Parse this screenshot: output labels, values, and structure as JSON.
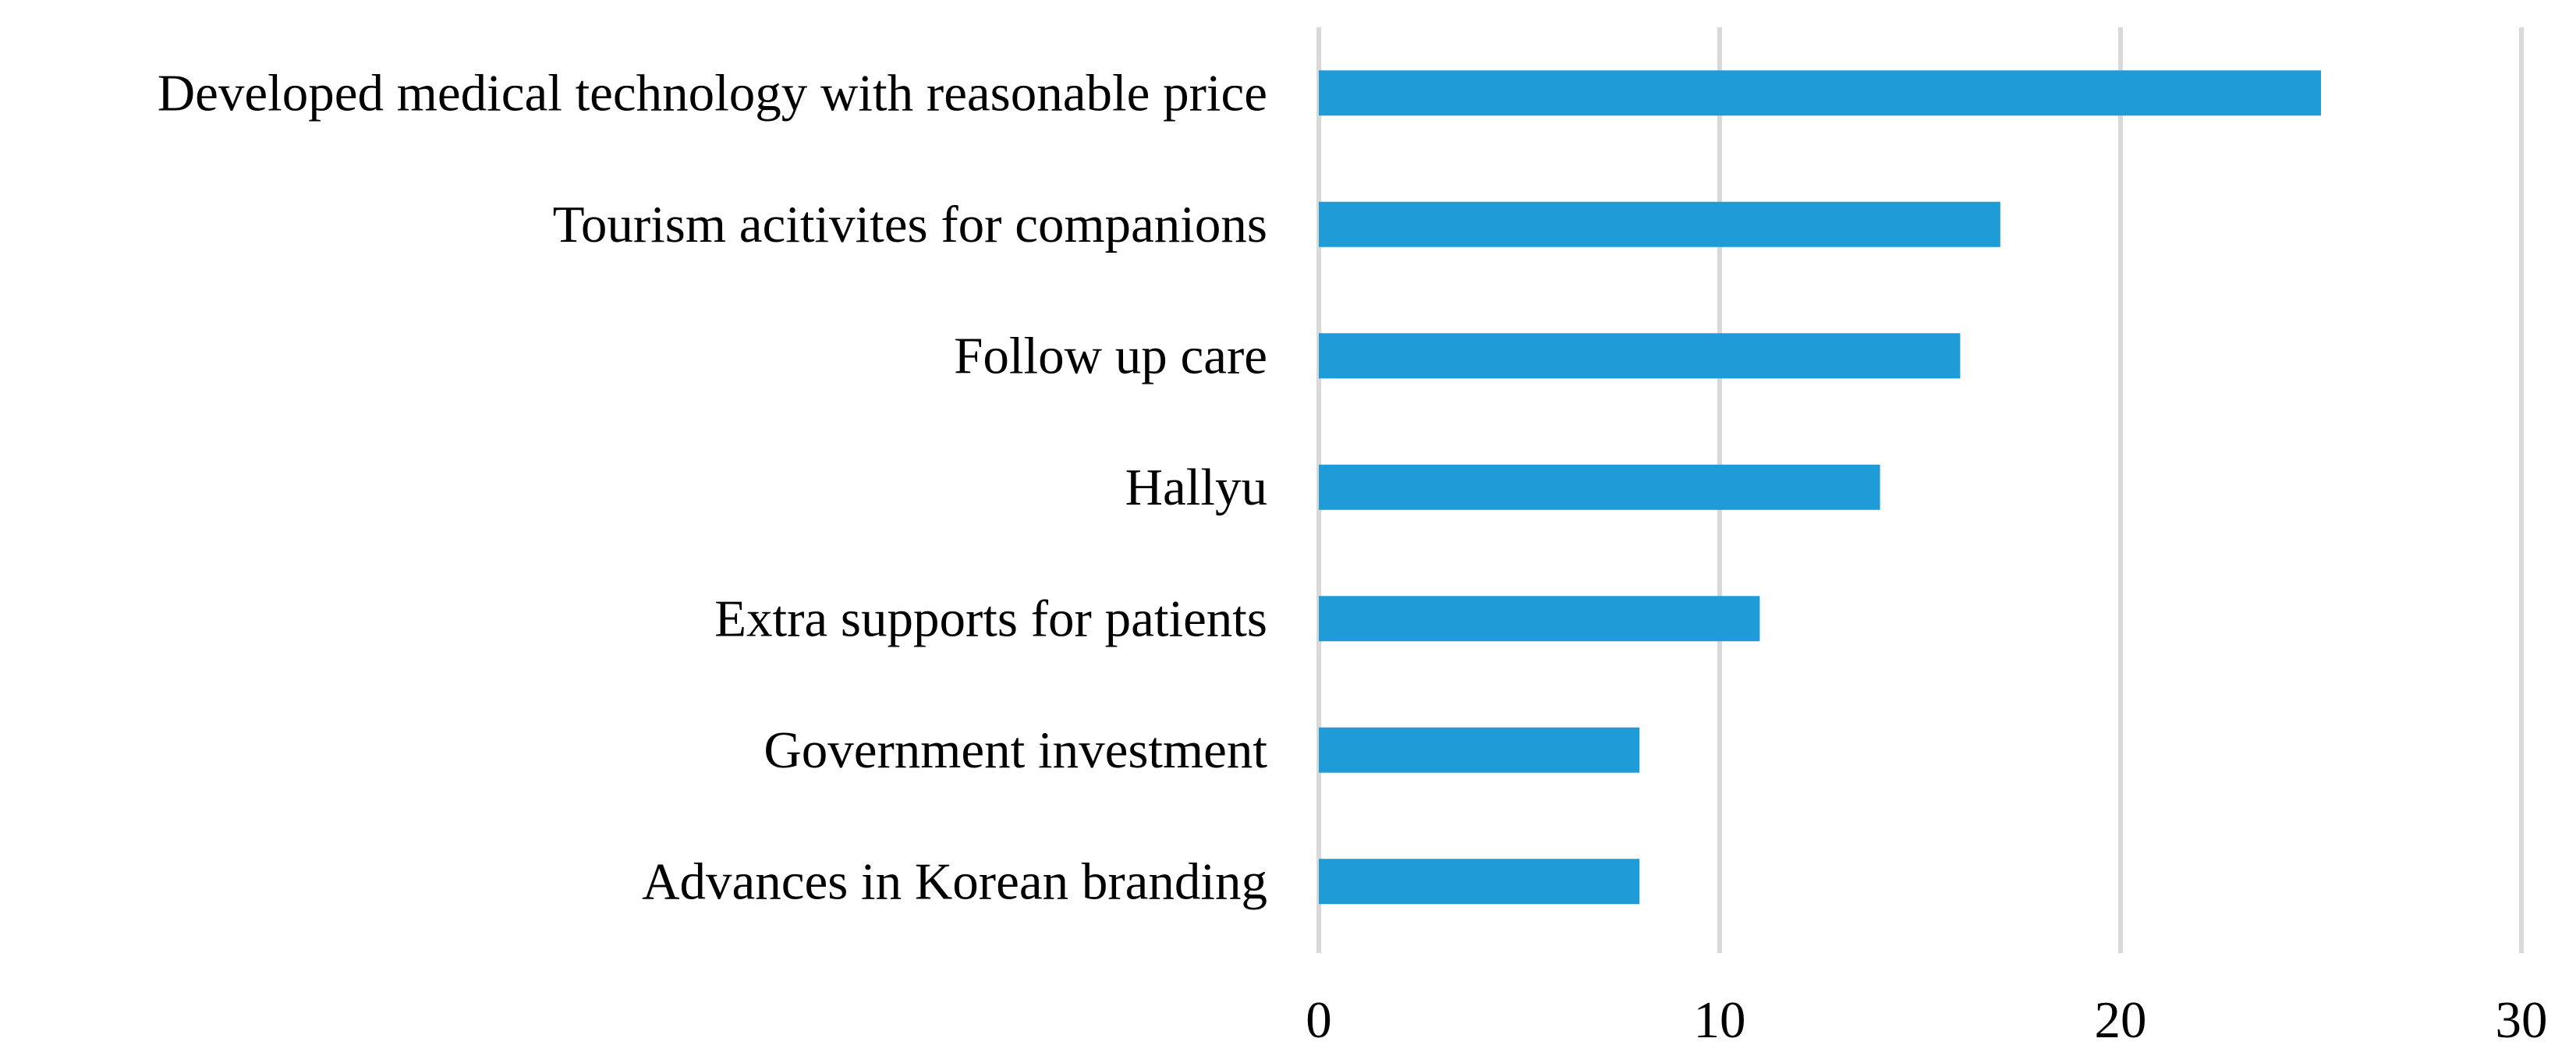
{
  "chart_data": {
    "type": "bar",
    "orientation": "horizontal",
    "categories": [
      "Developed medical technology with reasonable price",
      "Tourism acitivites for companions",
      "Follow up care",
      "Hallyu",
      "Extra supports for patients",
      "Government investment",
      "Advances in Korean branding"
    ],
    "values": [
      25,
      17,
      16,
      14,
      11,
      8,
      8
    ],
    "xlim": [
      0,
      30
    ],
    "x_ticks": [
      0,
      10,
      20,
      30
    ],
    "x_tick_labels": [
      "0",
      "10",
      "20",
      "30"
    ],
    "title": "",
    "xlabel": "",
    "ylabel": "",
    "grid": "vertical",
    "legend": "none",
    "bar_color": "#1f9bd7",
    "grid_color": "#d9d9d9"
  }
}
